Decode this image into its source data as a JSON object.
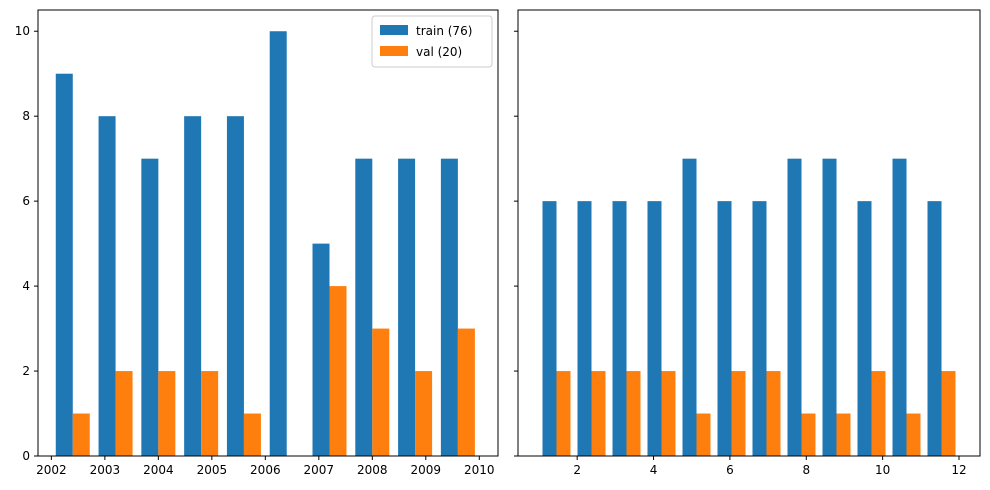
{
  "chart_data": [
    {
      "type": "bar",
      "x": [
        2002.4,
        2003.2,
        2004.0,
        2004.8,
        2005.6,
        2006.4,
        2007.2,
        2008.0,
        2008.8,
        2009.6
      ],
      "series": [
        {
          "name": "train (76)",
          "values": [
            9,
            8,
            7,
            8,
            8,
            10,
            5,
            7,
            7,
            7
          ],
          "color": "#1f77b4"
        },
        {
          "name": "val (20)",
          "values": [
            1,
            2,
            2,
            2,
            1,
            0,
            4,
            3,
            2,
            3
          ],
          "color": "#ff7f0e"
        }
      ],
      "xticks": [
        2002,
        2003,
        2004,
        2005,
        2006,
        2007,
        2008,
        2009,
        2010
      ],
      "yticks": [
        0,
        2,
        4,
        6,
        8,
        10
      ],
      "xlim": [
        2001.75,
        2010.35
      ],
      "ylim": [
        0,
        10.5
      ],
      "legend": "top-right",
      "grid": false,
      "title": "",
      "xlabel": "",
      "ylabel": ""
    },
    {
      "type": "bar",
      "x": [
        1.458,
        2.375,
        3.292,
        4.208,
        5.125,
        6.042,
        6.958,
        7.875,
        8.792,
        9.708,
        10.625,
        11.542
      ],
      "series": [
        {
          "name": "train",
          "values": [
            6,
            6,
            6,
            6,
            7,
            6,
            6,
            7,
            7,
            6,
            7,
            6
          ],
          "color": "#1f77b4"
        },
        {
          "name": "val",
          "values": [
            2,
            2,
            2,
            2,
            1,
            2,
            2,
            1,
            1,
            2,
            1,
            2
          ],
          "color": "#ff7f0e"
        }
      ],
      "xticks": [
        2,
        4,
        6,
        8,
        10,
        12
      ],
      "yticks": [
        0,
        2,
        4,
        6,
        8,
        10
      ],
      "xlim": [
        0.45,
        12.55
      ],
      "ylim": [
        0,
        10.5
      ],
      "legend": "none",
      "grid": false,
      "title": "",
      "xlabel": "",
      "ylabel": ""
    }
  ]
}
